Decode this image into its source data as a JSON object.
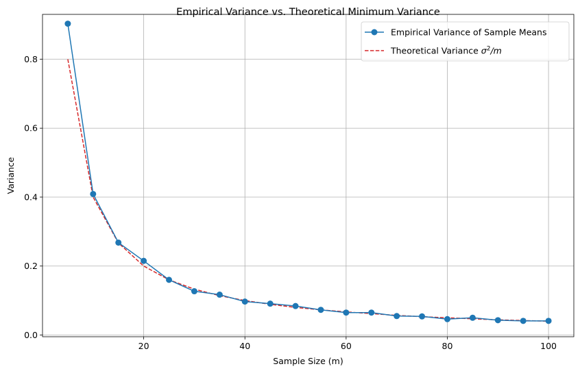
{
  "chart_data": {
    "type": "line",
    "title": "Empirical Variance vs. Theoretical Minimum Variance",
    "xlabel": "Sample Size (m)",
    "ylabel": "Variance",
    "xlim": [
      0,
      105
    ],
    "ylim": [
      -0.005,
      0.93
    ],
    "xticks": [
      20,
      40,
      60,
      80,
      100
    ],
    "xtick_labels": [
      "20",
      "40",
      "60",
      "80",
      "100"
    ],
    "yticks": [
      0.0,
      0.2,
      0.4,
      0.6,
      0.8
    ],
    "ytick_labels": [
      "0.0",
      "0.2",
      "0.4",
      "0.6",
      "0.8"
    ],
    "grid": true,
    "legend_position": "top-right",
    "x": [
      5,
      10,
      15,
      20,
      25,
      30,
      35,
      40,
      45,
      50,
      55,
      60,
      65,
      70,
      75,
      80,
      85,
      90,
      95,
      100
    ],
    "series": [
      {
        "name": "Empirical Variance of Sample Means",
        "legend_prefix": "Empirical Variance of Sample Means",
        "style": "solid-marker",
        "color": "#1f77b4",
        "values": [
          0.903,
          0.409,
          0.268,
          0.215,
          0.16,
          0.127,
          0.117,
          0.097,
          0.091,
          0.084,
          0.073,
          0.065,
          0.065,
          0.055,
          0.054,
          0.046,
          0.05,
          0.043,
          0.041,
          0.041
        ]
      },
      {
        "name": "Theoretical Variance σ²/m",
        "legend_prefix": "Theoretical Variance ",
        "legend_math_base": "σ",
        "legend_math_sup": "2",
        "legend_math_rest": "/m",
        "style": "dashed",
        "color": "#d62728",
        "values": [
          0.8,
          0.4,
          0.267,
          0.2,
          0.16,
          0.133,
          0.114,
          0.1,
          0.089,
          0.08,
          0.073,
          0.067,
          0.062,
          0.057,
          0.053,
          0.05,
          0.047,
          0.044,
          0.042,
          0.04
        ]
      }
    ]
  }
}
